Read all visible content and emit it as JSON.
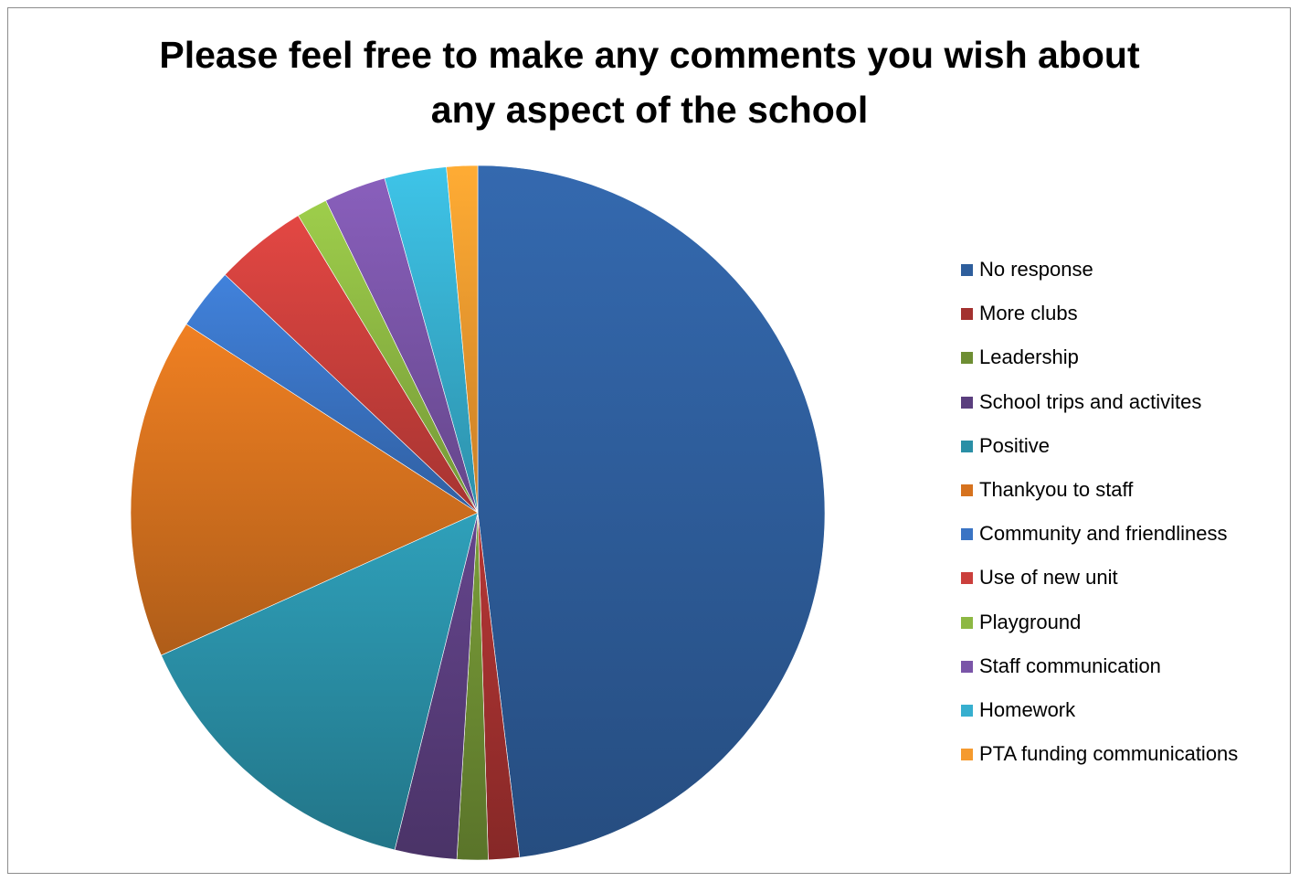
{
  "chart_data": {
    "type": "pie",
    "title_lines": [
      "Please feel free to make any comments you wish about",
      "any aspect of the school"
    ],
    "legend_position": "right",
    "series": [
      {
        "label": "No response",
        "value": 50.0,
        "color": "#2E5E9C"
      },
      {
        "label": "More clubs",
        "value": 1.5,
        "color": "#A3312F"
      },
      {
        "label": "Leadership",
        "value": 1.5,
        "color": "#6E8E33"
      },
      {
        "label": "School trips and activites",
        "value": 3.0,
        "color": "#5A3E7E"
      },
      {
        "label": "Positive",
        "value": 15.0,
        "color": "#2A8FA6"
      },
      {
        "label": "Thankyou to staff",
        "value": 16.5,
        "color": "#D6721E"
      },
      {
        "label": "Community and friendliness",
        "value": 3.0,
        "color": "#3A74C4"
      },
      {
        "label": "Use of new unit",
        "value": 4.5,
        "color": "#CB3F3C"
      },
      {
        "label": "Playground",
        "value": 1.5,
        "color": "#8DB843"
      },
      {
        "label": "Staff communication",
        "value": 3.0,
        "color": "#7A55A8"
      },
      {
        "label": "Homework",
        "value": 3.0,
        "color": "#37AFCF"
      },
      {
        "label": "PTA funding communications",
        "value": 1.5,
        "color": "#F59A2E"
      }
    ]
  }
}
